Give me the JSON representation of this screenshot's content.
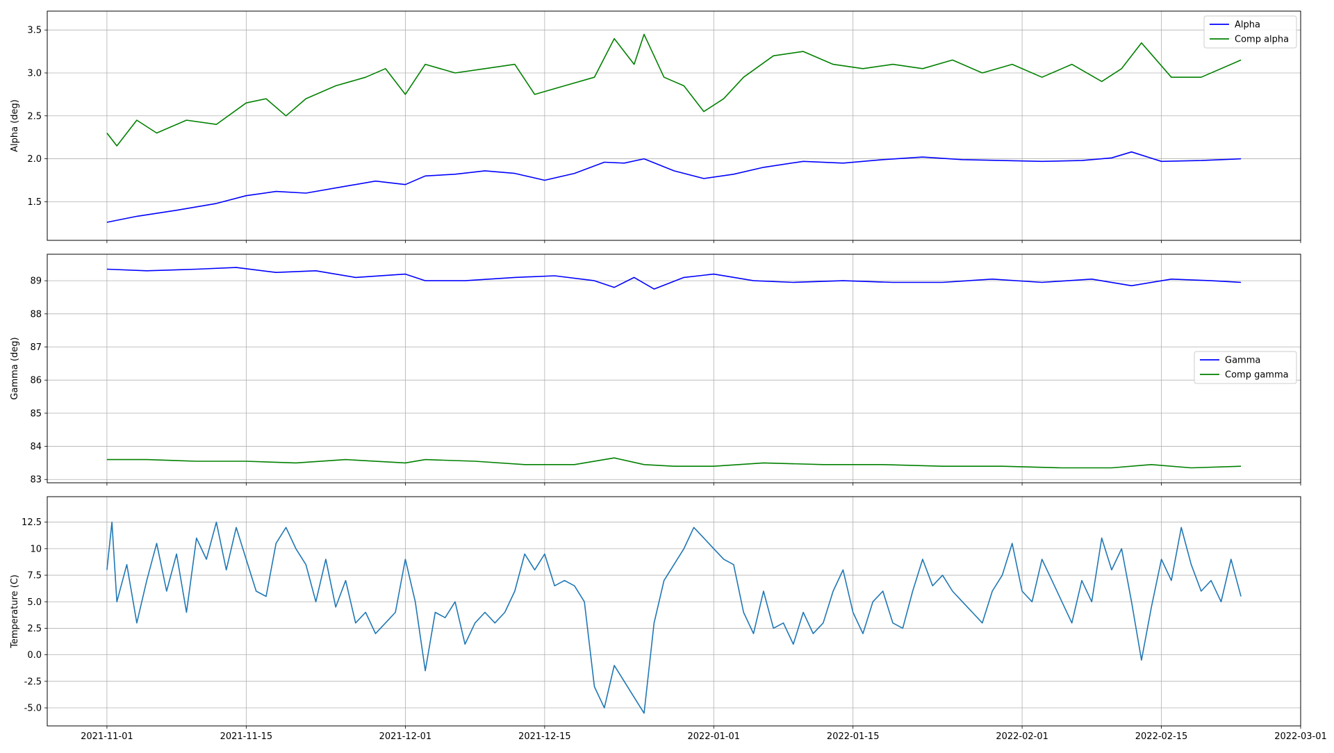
{
  "chart_data": [
    {
      "type": "line",
      "ylabel": "Alpha (deg)",
      "ylim": [
        1.05,
        3.72
      ],
      "yticks": [
        1.5,
        2.0,
        2.5,
        3.0,
        3.5
      ],
      "grid": true,
      "legend_position": "top-right",
      "series": [
        {
          "name": "Alpha",
          "color": "#0000ff",
          "x": [
            "2021-11-01",
            "2021-11-04",
            "2021-11-08",
            "2021-11-12",
            "2021-11-15",
            "2021-11-18",
            "2021-11-21",
            "2021-11-25",
            "2021-11-28",
            "2021-12-01",
            "2021-12-03",
            "2021-12-06",
            "2021-12-09",
            "2021-12-12",
            "2021-12-15",
            "2021-12-18",
            "2021-12-21",
            "2021-12-23",
            "2021-12-25",
            "2021-12-28",
            "2021-12-31",
            "2022-01-03",
            "2022-01-06",
            "2022-01-10",
            "2022-01-14",
            "2022-01-18",
            "2022-01-22",
            "2022-01-26",
            "2022-01-30",
            "2022-02-03",
            "2022-02-07",
            "2022-02-10",
            "2022-02-12",
            "2022-02-15",
            "2022-02-19",
            "2022-02-23"
          ],
          "y": [
            1.26,
            1.33,
            1.4,
            1.48,
            1.57,
            1.62,
            1.6,
            1.68,
            1.74,
            1.7,
            1.8,
            1.82,
            1.86,
            1.83,
            1.75,
            1.83,
            1.96,
            1.95,
            2.0,
            1.86,
            1.77,
            1.82,
            1.9,
            1.97,
            1.95,
            1.99,
            2.02,
            1.99,
            1.98,
            1.97,
            1.98,
            2.01,
            2.08,
            1.97,
            1.98,
            2.0
          ]
        },
        {
          "name": "Comp alpha",
          "color": "#008000",
          "x": [
            "2021-11-01",
            "2021-11-02",
            "2021-11-04",
            "2021-11-06",
            "2021-11-09",
            "2021-11-12",
            "2021-11-15",
            "2021-11-17",
            "2021-11-19",
            "2021-11-21",
            "2021-11-24",
            "2021-11-27",
            "2021-11-29",
            "2021-12-01",
            "2021-12-03",
            "2021-12-06",
            "2021-12-09",
            "2021-12-12",
            "2021-12-14",
            "2021-12-17",
            "2021-12-20",
            "2021-12-22",
            "2021-12-24",
            "2021-12-25",
            "2021-12-27",
            "2021-12-29",
            "2021-12-31",
            "2022-01-02",
            "2022-01-04",
            "2022-01-07",
            "2022-01-10",
            "2022-01-13",
            "2022-01-16",
            "2022-01-19",
            "2022-01-22",
            "2022-01-25",
            "2022-01-28",
            "2022-01-31",
            "2022-02-03",
            "2022-02-06",
            "2022-02-09",
            "2022-02-11",
            "2022-02-13",
            "2022-02-16",
            "2022-02-19",
            "2022-02-23"
          ],
          "y": [
            2.3,
            2.15,
            2.45,
            2.3,
            2.45,
            2.4,
            2.65,
            2.7,
            2.5,
            2.7,
            2.85,
            2.95,
            3.05,
            2.75,
            3.1,
            3.0,
            3.05,
            3.1,
            2.75,
            2.85,
            2.95,
            3.4,
            3.1,
            3.45,
            2.95,
            2.85,
            2.55,
            2.7,
            2.95,
            3.2,
            3.25,
            3.1,
            3.05,
            3.1,
            3.05,
            3.15,
            3.0,
            3.1,
            2.95,
            3.1,
            2.9,
            3.05,
            3.35,
            2.95,
            2.95,
            3.15
          ]
        }
      ]
    },
    {
      "type": "line",
      "ylabel": "Gamma (deg)",
      "ylim": [
        82.9,
        89.8
      ],
      "yticks": [
        83,
        84,
        85,
        86,
        87,
        88,
        89
      ],
      "grid": true,
      "legend_position": "center-right",
      "series": [
        {
          "name": "Gamma",
          "color": "#0000ff",
          "x": [
            "2021-11-01",
            "2021-11-05",
            "2021-11-10",
            "2021-11-14",
            "2021-11-18",
            "2021-11-22",
            "2021-11-26",
            "2021-12-01",
            "2021-12-03",
            "2021-12-07",
            "2021-12-12",
            "2021-12-16",
            "2021-12-20",
            "2021-12-22",
            "2021-12-24",
            "2021-12-26",
            "2021-12-29",
            "2022-01-01",
            "2022-01-05",
            "2022-01-09",
            "2022-01-14",
            "2022-01-19",
            "2022-01-24",
            "2022-01-29",
            "2022-02-03",
            "2022-02-08",
            "2022-02-12",
            "2022-02-16",
            "2022-02-20",
            "2022-02-23"
          ],
          "y": [
            89.35,
            89.3,
            89.35,
            89.4,
            89.25,
            89.3,
            89.1,
            89.2,
            89.0,
            89.0,
            89.1,
            89.15,
            89.0,
            88.8,
            89.1,
            88.75,
            89.1,
            89.2,
            89.0,
            88.95,
            89.0,
            88.95,
            88.95,
            89.05,
            88.95,
            89.05,
            88.85,
            89.05,
            89.0,
            88.95
          ]
        },
        {
          "name": "Comp gamma",
          "color": "#008000",
          "x": [
            "2021-11-01",
            "2021-11-05",
            "2021-11-10",
            "2021-11-15",
            "2021-11-20",
            "2021-11-25",
            "2021-12-01",
            "2021-12-03",
            "2021-12-08",
            "2021-12-13",
            "2021-12-18",
            "2021-12-22",
            "2021-12-25",
            "2021-12-28",
            "2022-01-01",
            "2022-01-06",
            "2022-01-12",
            "2022-01-18",
            "2022-01-24",
            "2022-01-30",
            "2022-02-05",
            "2022-02-10",
            "2022-02-14",
            "2022-02-18",
            "2022-02-23"
          ],
          "y": [
            83.6,
            83.6,
            83.55,
            83.55,
            83.5,
            83.6,
            83.5,
            83.6,
            83.55,
            83.45,
            83.45,
            83.65,
            83.45,
            83.4,
            83.4,
            83.5,
            83.45,
            83.45,
            83.4,
            83.4,
            83.35,
            83.35,
            83.45,
            83.35,
            83.4
          ]
        }
      ]
    },
    {
      "type": "line",
      "ylabel": "Temperature (C)",
      "ylim": [
        -6.7,
        14.9
      ],
      "yticks": [
        -5.0,
        -2.5,
        0.0,
        2.5,
        5.0,
        7.5,
        10.0,
        12.5
      ],
      "xticks": [
        "2021-11-01",
        "2021-11-15",
        "2021-12-01",
        "2021-12-15",
        "2022-01-01",
        "2022-01-15",
        "2022-02-01",
        "2022-02-15",
        "2022-03-01"
      ],
      "xlim": [
        "2021-10-26",
        "2022-03-01"
      ],
      "grid": true,
      "series": [
        {
          "name": "",
          "color": "#1f77b4",
          "x": [
            "2021-11-01",
            "2021-11-01T12",
            "2021-11-02",
            "2021-11-03",
            "2021-11-04",
            "2021-11-05",
            "2021-11-06",
            "2021-11-07",
            "2021-11-08",
            "2021-11-09",
            "2021-11-10",
            "2021-11-11",
            "2021-11-12",
            "2021-11-13",
            "2021-11-14",
            "2021-11-15",
            "2021-11-16",
            "2021-11-17",
            "2021-11-18",
            "2021-11-19",
            "2021-11-20",
            "2021-11-21",
            "2021-11-22",
            "2021-11-23",
            "2021-11-24",
            "2021-11-25",
            "2021-11-26",
            "2021-11-27",
            "2021-11-28",
            "2021-11-29",
            "2021-11-30",
            "2021-12-01",
            "2021-12-02",
            "2021-12-03",
            "2021-12-04",
            "2021-12-05",
            "2021-12-06",
            "2021-12-07",
            "2021-12-08",
            "2021-12-09",
            "2021-12-10",
            "2021-12-11",
            "2021-12-12",
            "2021-12-13",
            "2021-12-14",
            "2021-12-15",
            "2021-12-16",
            "2021-12-17",
            "2021-12-18",
            "2021-12-19",
            "2021-12-20",
            "2021-12-21",
            "2021-12-22",
            "2021-12-23",
            "2021-12-24",
            "2021-12-25",
            "2021-12-26",
            "2021-12-27",
            "2021-12-28",
            "2021-12-29",
            "2021-12-30",
            "2021-12-31",
            "2022-01-01",
            "2022-01-02",
            "2022-01-03",
            "2022-01-04",
            "2022-01-05",
            "2022-01-06",
            "2022-01-07",
            "2022-01-08",
            "2022-01-09",
            "2022-01-10",
            "2022-01-11",
            "2022-01-12",
            "2022-01-13",
            "2022-01-14",
            "2022-01-15",
            "2022-01-16",
            "2022-01-17",
            "2022-01-18",
            "2022-01-19",
            "2022-01-20",
            "2022-01-21",
            "2022-01-22",
            "2022-01-23",
            "2022-01-24",
            "2022-01-25",
            "2022-01-26",
            "2022-01-27",
            "2022-01-28",
            "2022-01-29",
            "2022-01-30",
            "2022-01-31",
            "2022-02-01",
            "2022-02-02",
            "2022-02-03",
            "2022-02-04",
            "2022-02-05",
            "2022-02-06",
            "2022-02-07",
            "2022-02-08",
            "2022-02-09",
            "2022-02-10",
            "2022-02-11",
            "2022-02-12",
            "2022-02-13",
            "2022-02-14",
            "2022-02-15",
            "2022-02-16",
            "2022-02-17",
            "2022-02-18",
            "2022-02-19",
            "2022-02-20",
            "2022-02-21",
            "2022-02-22",
            "2022-02-23"
          ],
          "y": [
            8.0,
            12.5,
            5.0,
            8.5,
            3.0,
            7.0,
            10.5,
            6.0,
            9.5,
            4.0,
            11.0,
            9.0,
            12.5,
            8.0,
            12.0,
            9.0,
            6.0,
            5.5,
            10.5,
            12.0,
            10.0,
            8.5,
            5.0,
            9.0,
            4.5,
            7.0,
            3.0,
            4.0,
            2.0,
            3.0,
            4.0,
            9.0,
            5.0,
            -1.5,
            4.0,
            3.5,
            5.0,
            1.0,
            3.0,
            4.0,
            3.0,
            4.0,
            6.0,
            9.5,
            8.0,
            9.5,
            6.5,
            7.0,
            6.5,
            5.0,
            -3.0,
            -5.0,
            -1.0,
            -2.5,
            -4.0,
            -5.5,
            3.0,
            7.0,
            8.5,
            10.0,
            12.0,
            11.0,
            10.0,
            9.0,
            8.5,
            4.0,
            2.0,
            6.0,
            2.5,
            3.0,
            1.0,
            4.0,
            2.0,
            3.0,
            6.0,
            8.0,
            4.0,
            2.0,
            5.0,
            6.0,
            3.0,
            2.5,
            6.0,
            9.0,
            6.5,
            7.5,
            6.0,
            5.0,
            4.0,
            3.0,
            6.0,
            7.5,
            10.5,
            6.0,
            5.0,
            9.0,
            7.0,
            5.0,
            3.0,
            7.0,
            5.0,
            11.0,
            8.0,
            10.0,
            5.0,
            -0.5,
            4.5,
            9.0,
            7.0,
            12.0,
            8.5,
            6.0,
            7.0,
            5.0,
            9.0,
            5.5
          ]
        }
      ]
    }
  ]
}
